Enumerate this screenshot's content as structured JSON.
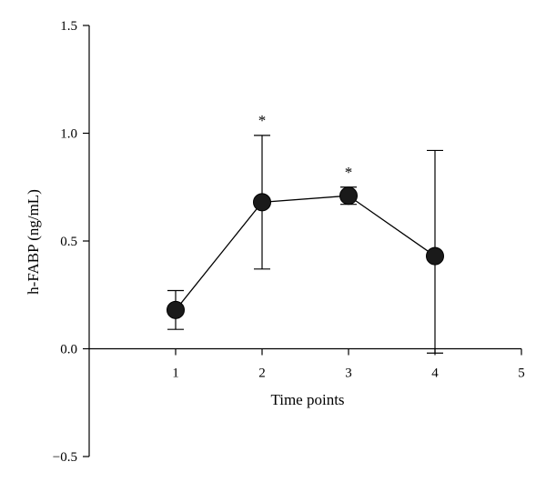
{
  "chart_data": {
    "type": "line",
    "title": "",
    "xlabel": "Time points",
    "ylabel": "h-FABP (ng/mL)",
    "xlim": [
      0,
      5
    ],
    "ylim": [
      -0.5,
      1.5
    ],
    "x_ticks": [
      1,
      2,
      3,
      4,
      5
    ],
    "y_ticks": [
      -0.5,
      0.0,
      0.5,
      1.0,
      1.5
    ],
    "x_tick_labels": [
      "1",
      "2",
      "3",
      "4",
      "5"
    ],
    "y_tick_labels": [
      "−0.5",
      "0.0",
      "0.5",
      "1.0",
      "1.5"
    ],
    "grid": false,
    "legend": "none",
    "series": [
      {
        "x": [
          1,
          2,
          3,
          4
        ],
        "values": [
          0.18,
          0.68,
          0.71,
          0.43
        ],
        "error_low": [
          0.09,
          0.37,
          0.67,
          -0.02
        ],
        "error_high": [
          0.27,
          0.99,
          0.75,
          0.92
        ],
        "color": "#1a1a1a"
      }
    ],
    "annotations": [
      {
        "text": "*",
        "x": 2
      },
      {
        "text": "*",
        "x": 3
      }
    ]
  }
}
